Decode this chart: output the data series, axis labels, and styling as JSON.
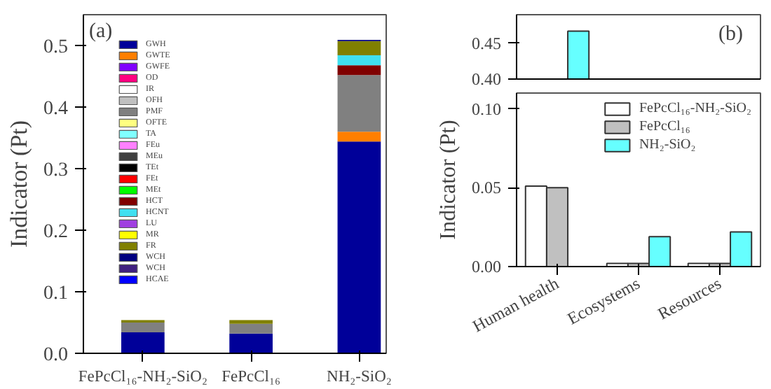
{
  "chart_data": [
    {
      "type": "bar",
      "stacked": true,
      "categories": [
        "FePcCl₁₆-NH₂-SiO₂",
        "FePcCl₁₆",
        "NH₂-SiO₂"
      ],
      "ylabel": "Indicator (Pt)",
      "ylim": [
        0,
        0.55
      ],
      "yticks": [
        {
          "value": 0,
          "label": "0.0"
        },
        0.1,
        0.2,
        0.3,
        0.4,
        0.5
      ],
      "legend": "top left",
      "grid": false,
      "annotations": [
        "(a)"
      ],
      "series": [
        {
          "name": "GWH",
          "color": "#000099",
          "values": [
            0.034,
            0.032,
            0.344
          ]
        },
        {
          "name": "GWTE",
          "color": "#ff7f00",
          "values": [
            0,
            0,
            0.016
          ]
        },
        {
          "name": "GWFE",
          "color": "#8000ff",
          "values": [
            0,
            0,
            0
          ]
        },
        {
          "name": "OD",
          "color": "#ff0080",
          "values": [
            0,
            0,
            0
          ]
        },
        {
          "name": "IR",
          "color": "#ffffff",
          "values": [
            0,
            0,
            0
          ]
        },
        {
          "name": "OFH",
          "color": "#c0c0c0",
          "values": [
            0,
            0,
            0
          ]
        },
        {
          "name": "PMF",
          "color": "#808080",
          "values": [
            0.016,
            0.016,
            0.092
          ]
        },
        {
          "name": "OFTE",
          "color": "#ffff80",
          "values": [
            0,
            0,
            0
          ]
        },
        {
          "name": "TA",
          "color": "#80ffff",
          "values": [
            0,
            0,
            0
          ]
        },
        {
          "name": "FEu",
          "color": "#ff80ff",
          "values": [
            0,
            0,
            0
          ]
        },
        {
          "name": "MEu",
          "color": "#404040",
          "values": [
            0,
            0,
            0
          ]
        },
        {
          "name": "TEt",
          "color": "#000000",
          "values": [
            0,
            0,
            0
          ]
        },
        {
          "name": "FEt",
          "color": "#ff0000",
          "values": [
            0,
            0,
            0
          ]
        },
        {
          "name": "MEt",
          "color": "#00ff00",
          "values": [
            0,
            0,
            0
          ]
        },
        {
          "name": "HCT",
          "color": "#800000",
          "values": [
            0,
            0,
            0.016
          ]
        },
        {
          "name": "HCNT",
          "color": "#40e0f0",
          "values": [
            0,
            0,
            0.016
          ]
        },
        {
          "name": "LU",
          "color": "#a040e0",
          "values": [
            0,
            0,
            0
          ]
        },
        {
          "name": "MR",
          "color": "#ffff00",
          "values": [
            0,
            0,
            0
          ]
        },
        {
          "name": "FR",
          "color": "#808000",
          "values": [
            0.004,
            0.006,
            0.023
          ]
        },
        {
          "name": "WCH",
          "color": "#000080",
          "values": [
            0,
            0,
            0.002
          ]
        },
        {
          "name": "WCH",
          "color": "#402080",
          "values": [
            0,
            0,
            0
          ]
        },
        {
          "name": "HCAE",
          "color": "#0000ff",
          "values": [
            0,
            0,
            0
          ]
        }
      ]
    },
    {
      "type": "bar",
      "categories": [
        null,
        null,
        null
      ],
      "ylim": [
        0.4,
        0.49
      ],
      "yticks": [
        {
          "value": 0.4,
          "label": "0.40"
        },
        0.45
      ],
      "tick_labels": "y",
      "grid": false,
      "annotations": [
        "(b)"
      ],
      "series": [
        {
          "color": "#ffffff",
          "values": [
            null,
            null,
            null
          ]
        },
        {
          "color": "#c0c0c0",
          "values": [
            null,
            null,
            null
          ]
        },
        {
          "color": "#66ffff",
          "values": [
            0.467,
            null,
            null
          ]
        }
      ]
    },
    {
      "type": "bar",
      "categories": [
        "Human health",
        "Ecosystems",
        "Resources"
      ],
      "ylabel": "Indicator (Pt)",
      "ylim": [
        0,
        0.11
      ],
      "yticks": [
        {
          "value": 0,
          "label": "0.00"
        },
        0.05,
        {
          "value": 0.1,
          "label": "0.10"
        }
      ],
      "legend": "top right",
      "grid": false,
      "series": [
        {
          "name": "FePcCl₁₆-NH₂-SiO₂",
          "color": "#ffffff",
          "values": [
            0.051,
            0.002,
            0.002
          ]
        },
        {
          "name": "FePcCl₁₆",
          "color": "#c0c0c0",
          "values": [
            0.05,
            0.002,
            0.002
          ]
        },
        {
          "name": "NH₂-SiO₂",
          "color": "#66ffff",
          "values": [
            null,
            0.019,
            0.022
          ]
        }
      ]
    }
  ]
}
